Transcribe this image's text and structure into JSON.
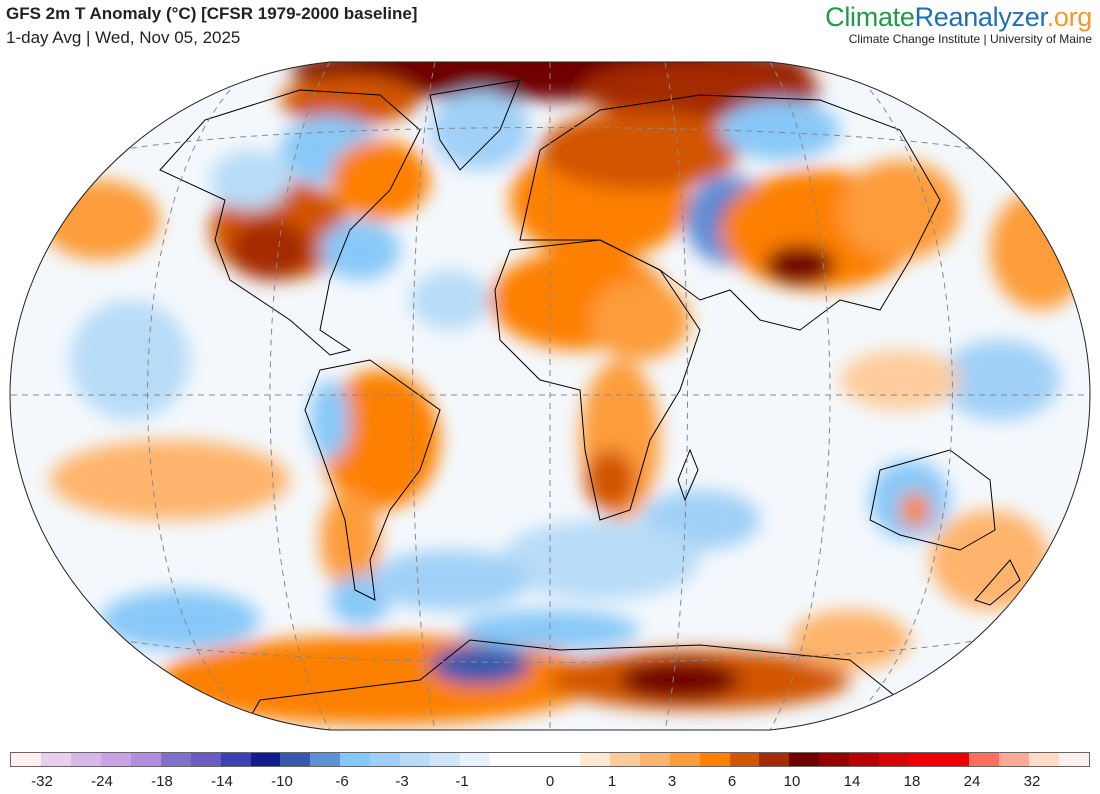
{
  "header": {
    "title": "GFS 2m T Anomaly (°C) [CFSR 1979-2000 baseline]",
    "subtitle": "1-day Avg | Wed, Nov 05, 2025"
  },
  "logo": {
    "part1": "Climate",
    "part2": "Reanalyzer",
    "part3": ".org",
    "tagline": "Climate Change Institute | University of Maine",
    "colors": {
      "climate": "#1e9a48",
      "reanalyzer": "#1f6fb8",
      "org": "#f39a2a"
    }
  },
  "colorbar": {
    "labels": [
      "-32",
      "-24",
      "-18",
      "-14",
      "-10",
      "-6",
      "-3",
      "-1",
      "0",
      "1",
      "3",
      "6",
      "10",
      "14",
      "18",
      "24",
      "32"
    ],
    "colors": [
      "#fff0f0",
      "#e8d0ec",
      "#d8b8e8",
      "#c8a4e4",
      "#b090dc",
      "#8070c8",
      "#6a5cc0",
      "#3c40b0",
      "#101c90",
      "#3858b0",
      "#6090d8",
      "#88c8f8",
      "#a0d0f8",
      "#b8dcf8",
      "#d0e6f8",
      "#e8f2fc",
      "#ffffff",
      "#ffffff",
      "#ffffff",
      "#fde8d4",
      "#fecc9c",
      "#feb46c",
      "#fd9c3a",
      "#fd8000",
      "#d25500",
      "#a42c00",
      "#700000",
      "#960000",
      "#bc0000",
      "#d80404",
      "#ee0000",
      "#ee0000",
      "#ff6e60",
      "#ffa898",
      "#ffdcc8",
      "#fff0f0"
    ]
  }
}
